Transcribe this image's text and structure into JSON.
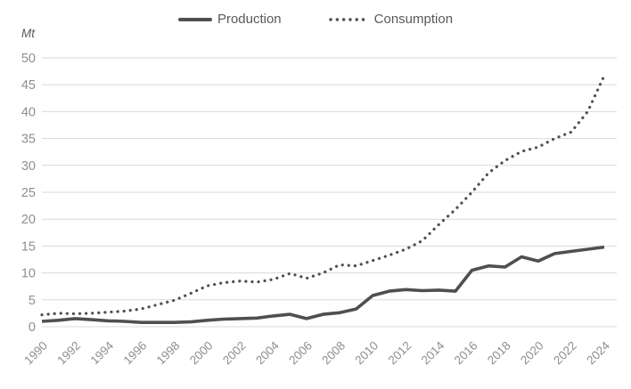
{
  "chart": {
    "unit_label": "Mt",
    "legend": {
      "production_label": "Production",
      "consumption_label": "Consumption"
    },
    "colors": {
      "series": "#4f4f4f",
      "gridline": "#d9d9d9",
      "axis_label": "#8e8e8e",
      "legend_text": "#595959",
      "background": "#ffffff"
    }
  },
  "chart_data": {
    "type": "line",
    "title": "",
    "xlabel": "",
    "ylabel": "Mt",
    "grid": "horizontal",
    "legend_position": "top-center",
    "ylim": [
      0,
      50
    ],
    "ytick_step": 5,
    "xtick_step": 2,
    "x": [
      1990,
      1991,
      1992,
      1993,
      1994,
      1995,
      1996,
      1997,
      1998,
      1999,
      2000,
      2001,
      2002,
      2003,
      2004,
      2005,
      2006,
      2007,
      2008,
      2009,
      2010,
      2011,
      2012,
      2013,
      2014,
      2015,
      2016,
      2017,
      2018,
      2019,
      2020,
      2021,
      2022,
      2023,
      2024
    ],
    "series": [
      {
        "name": "Production",
        "style": "solid",
        "values": [
          1.0,
          1.2,
          1.5,
          1.3,
          1.1,
          1.0,
          0.8,
          0.8,
          0.8,
          0.9,
          1.2,
          1.4,
          1.5,
          1.6,
          2.0,
          2.3,
          1.5,
          2.3,
          2.6,
          3.3,
          5.8,
          6.6,
          6.9,
          6.7,
          6.8,
          6.6,
          10.5,
          11.3,
          11.1,
          13.0,
          12.2,
          13.6,
          14.0,
          14.4,
          14.8
        ]
      },
      {
        "name": "Consumption",
        "style": "dotted",
        "values": [
          2.2,
          2.5,
          2.4,
          2.5,
          2.7,
          2.9,
          3.3,
          4.1,
          4.9,
          6.2,
          7.6,
          8.2,
          8.5,
          8.3,
          8.8,
          9.9,
          9.0,
          10.0,
          11.5,
          11.3,
          12.3,
          13.3,
          14.4,
          16.0,
          19.0,
          21.8,
          25.0,
          28.6,
          30.9,
          32.6,
          33.4,
          35.0,
          36.2,
          40.0,
          46.7
        ]
      }
    ]
  }
}
